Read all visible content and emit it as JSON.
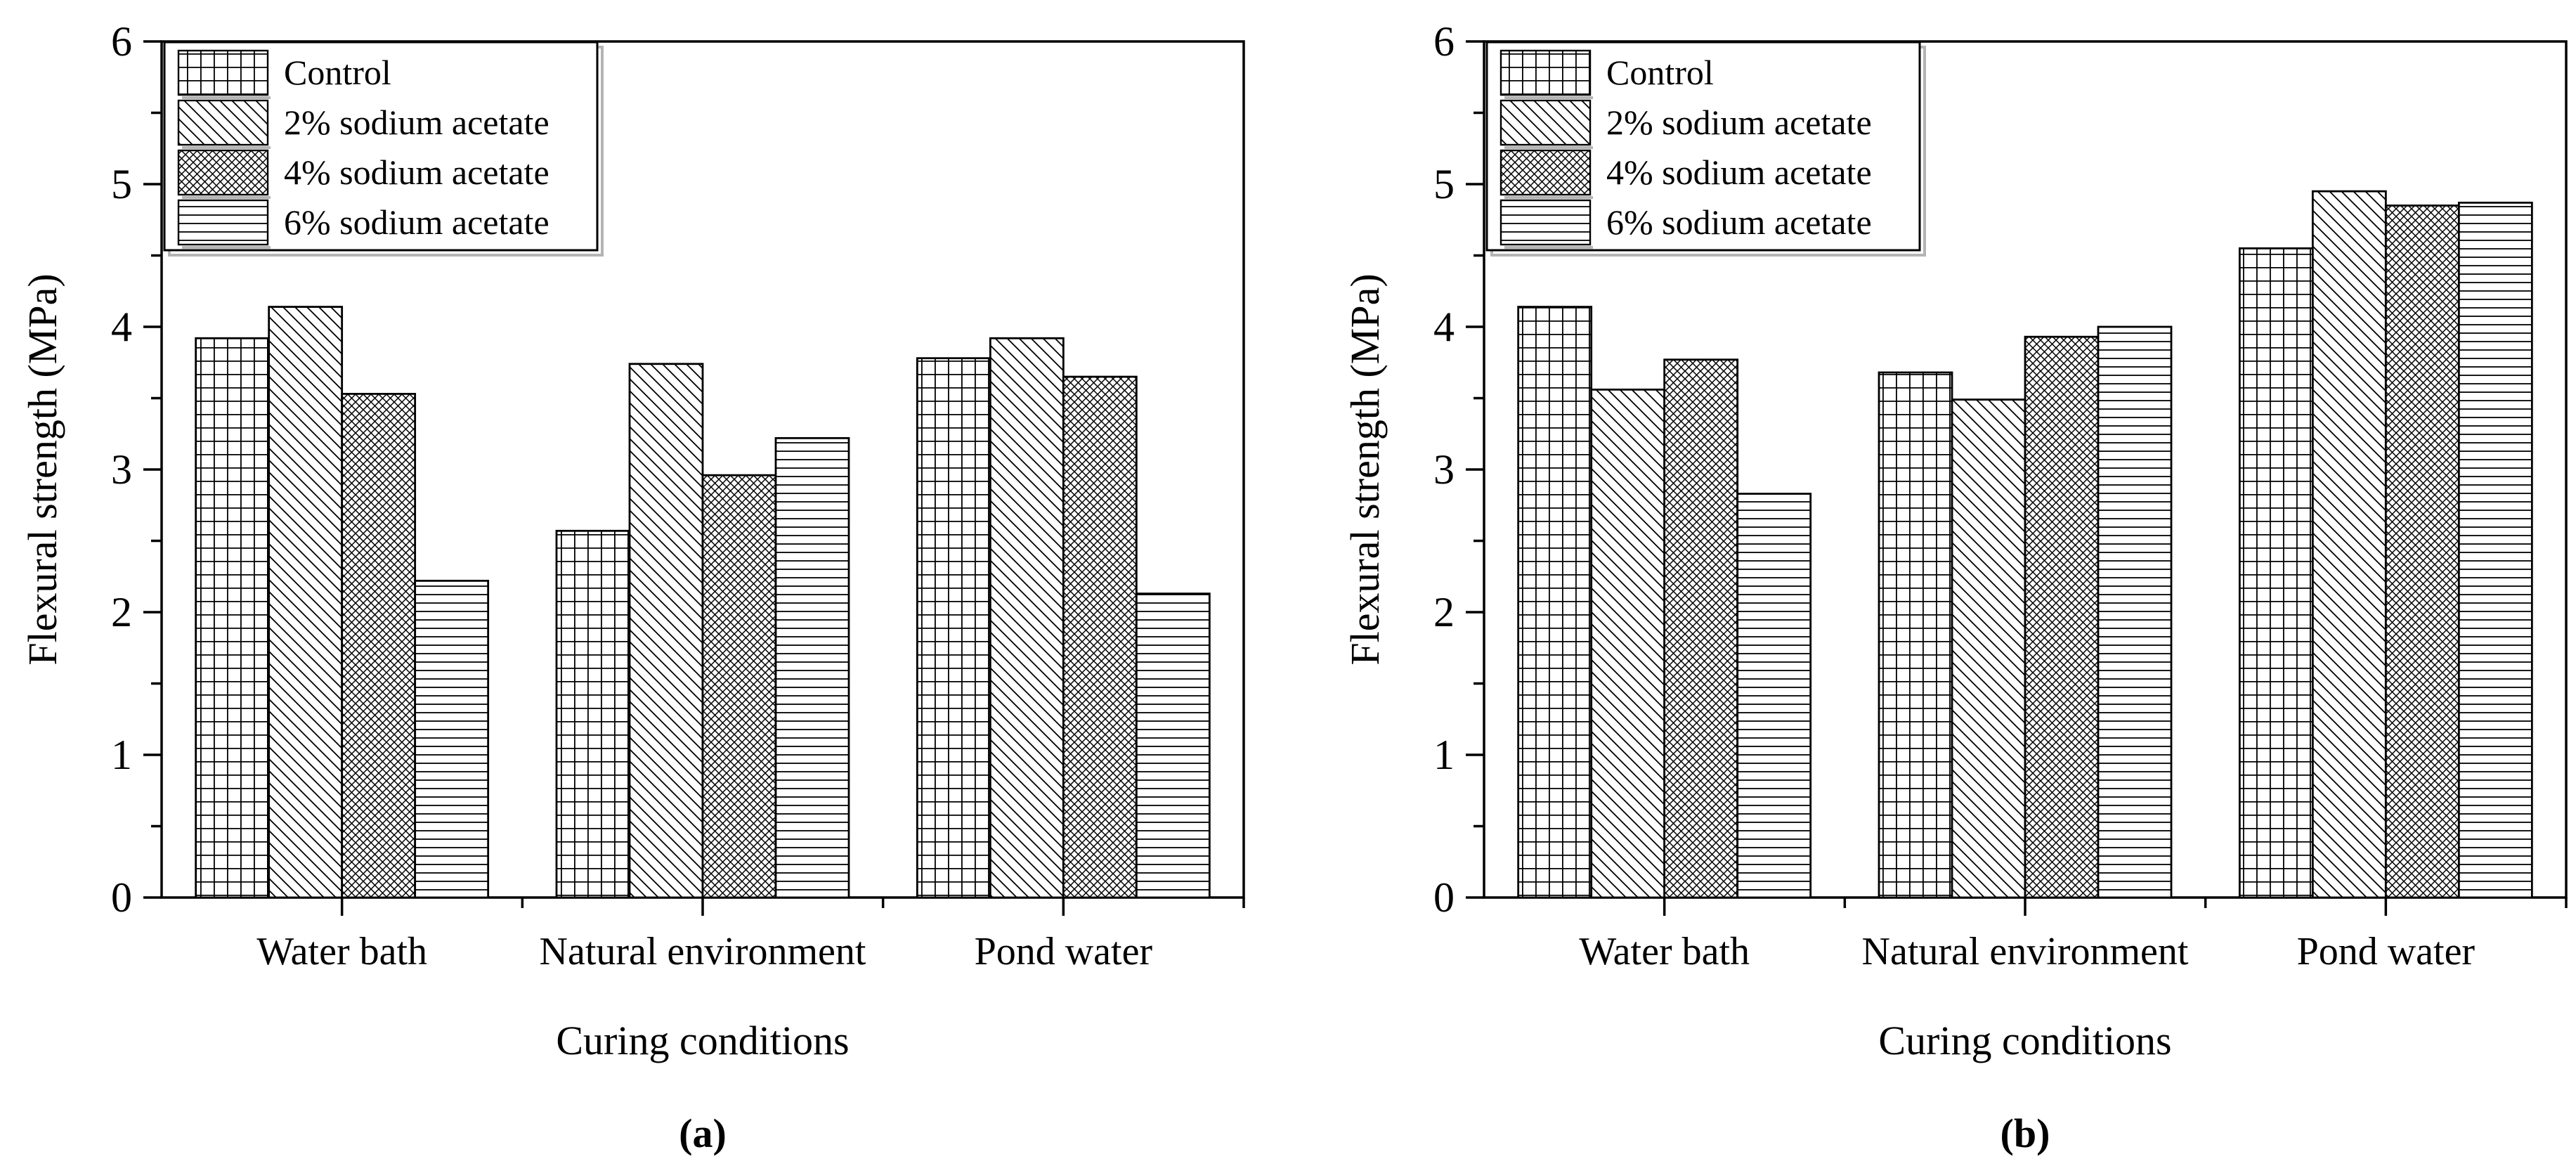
{
  "figure": {
    "kind": "two-panel grouped bar figure",
    "background": "#ffffff",
    "ink": "#000000",
    "legend_shadow": "#b4b4b4"
  },
  "chart_data": [
    {
      "type": "bar",
      "panel_label": "(a)",
      "title": "",
      "xlabel": "Curing conditions",
      "ylabel": "Flexural strength (MPa)",
      "ylim": [
        0,
        6
      ],
      "yticks": [
        "0",
        "1",
        "2",
        "3",
        "4",
        "5",
        "6"
      ],
      "grid": false,
      "legend_position": "top-left",
      "categories": [
        "Water bath",
        "Natural environment",
        "Pond water"
      ],
      "series": [
        {
          "name": "Control",
          "pattern": "grid",
          "values": [
            3.92,
            2.57,
            3.78
          ]
        },
        {
          "name": "2% sodium acetate",
          "pattern": "diagonal-down",
          "values": [
            4.14,
            3.74,
            3.92
          ]
        },
        {
          "name": "4% sodium acetate",
          "pattern": "diagonal-crosshatch",
          "values": [
            3.53,
            2.96,
            3.65
          ]
        },
        {
          "name": "6% sodium acetate",
          "pattern": "horizontal-lines",
          "values": [
            2.22,
            3.22,
            2.13
          ]
        }
      ]
    },
    {
      "type": "bar",
      "panel_label": "(b)",
      "title": "",
      "xlabel": "Curing conditions",
      "ylabel": "Flexural strength (MPa)",
      "ylim": [
        0,
        6
      ],
      "yticks": [
        "0",
        "1",
        "2",
        "3",
        "4",
        "5",
        "6"
      ],
      "grid": false,
      "legend_position": "top-left",
      "categories": [
        "Water bath",
        "Natural environment",
        "Pond water"
      ],
      "series": [
        {
          "name": "Control",
          "pattern": "grid",
          "values": [
            4.14,
            3.68,
            4.55
          ]
        },
        {
          "name": "2% sodium acetate",
          "pattern": "diagonal-down",
          "values": [
            3.56,
            3.49,
            4.95
          ]
        },
        {
          "name": "4% sodium acetate",
          "pattern": "diagonal-crosshatch",
          "values": [
            3.77,
            3.93,
            4.85
          ]
        },
        {
          "name": "6% sodium acetate",
          "pattern": "horizontal-lines",
          "values": [
            2.83,
            4.0,
            4.87
          ]
        }
      ]
    }
  ]
}
